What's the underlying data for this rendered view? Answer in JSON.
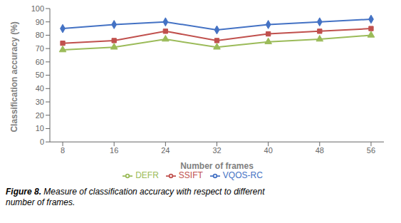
{
  "chart_data": {
    "type": "line",
    "x": [
      8,
      16,
      24,
      32,
      40,
      48,
      56
    ],
    "series": [
      {
        "name": "VQOS-RC",
        "color": "#4472C4",
        "marker": "diamond",
        "values": [
          85,
          88,
          90,
          84,
          88,
          90,
          92
        ]
      },
      {
        "name": "SSIFT",
        "color": "#C0504D",
        "marker": "square",
        "values": [
          74,
          76,
          83,
          76,
          81,
          83,
          85
        ]
      },
      {
        "name": "DEFR",
        "color": "#9BBB59",
        "marker": "triangle",
        "values": [
          69,
          71,
          77,
          71,
          75,
          77,
          80
        ]
      }
    ],
    "x_label": "Number  of frames",
    "y_label": "Classification accuracy  (%)",
    "xlim": [
      6,
      58
    ],
    "xticks": [
      8,
      16,
      24,
      32,
      40,
      48,
      56
    ],
    "ylim": [
      0,
      100
    ],
    "yticks": [
      0,
      10,
      20,
      30,
      40,
      50,
      60,
      70,
      80,
      90,
      100
    ],
    "grid": false,
    "legend": "bottom",
    "annotations": [
      "Figure 8.",
      " Measure of classification accuracy with respect to different\nnumber of frames."
    ]
  }
}
